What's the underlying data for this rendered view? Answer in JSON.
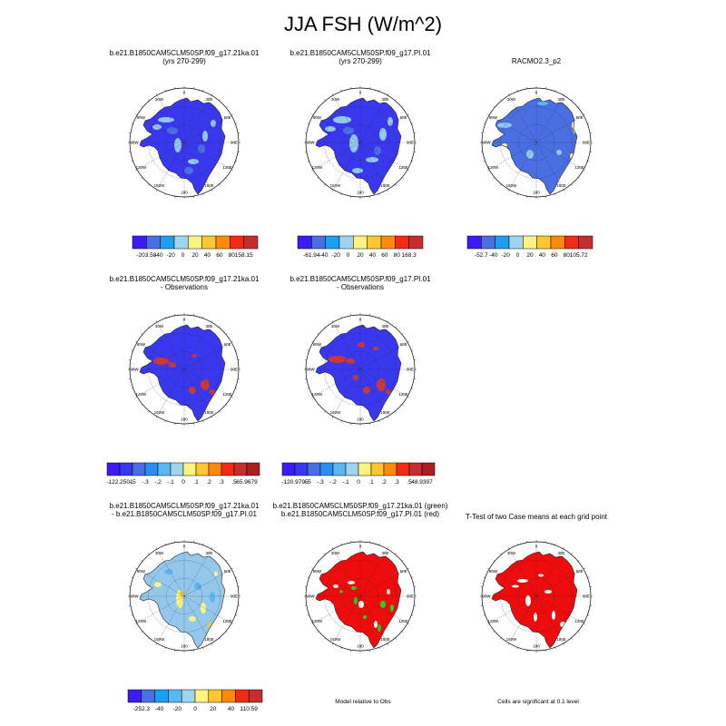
{
  "title": "JJA FSH (W/m^2)",
  "colors": {
    "land_blue": "#3a38ee",
    "light_blue": "#93c8ec",
    "mid_blue": "#4a6fe3",
    "ocean": "#ffffff",
    "sig_red": "#ef0c0c",
    "sig_green": "#1fd61f",
    "obs_red": "#c83a3a"
  },
  "lon_labels": [
    "0",
    "30E",
    "60E",
    "90E",
    "120E",
    "150E",
    "180",
    "150W",
    "120W",
    "90W",
    "60W",
    "30W"
  ],
  "panels": [
    {
      "id": "p1",
      "title": [
        "b.e21.B1850CAM5CLM50SP.f09_g17.21ka.01",
        "(yrs 270-299)"
      ],
      "map_style": "model-a"
    },
    {
      "id": "p2",
      "title": [
        "b.e21.B1850CAM5CLM50SP.f09_g17.PI.01",
        "(yrs 270-299)"
      ],
      "map_style": "model-b"
    },
    {
      "id": "p3",
      "title": [
        "RACMO2.3_p2"
      ],
      "map_style": "obs"
    },
    {
      "id": "p4",
      "title": [
        "b.e21.B1850CAM5CLM50SP.f09_g17.21ka.01",
        "- Observations"
      ],
      "map_style": "diff-a"
    },
    {
      "id": "p5",
      "title": [
        "b.e21.B1850CAM5CLM50SP.f09_g17.PI.01",
        "- Observations"
      ],
      "map_style": "diff-b"
    },
    {
      "id": "p6",
      "title": [
        "b.e21.B1850CAM5CLM50SP.f09_g17.21ka.01",
        "- b.e21.B1850CAM5CLM50SP.f09_g17.PI.01"
      ],
      "map_style": "case-diff"
    },
    {
      "id": "p7",
      "title": [
        "b.e21.B1850CAM5CLM50SP.f09_g17.21ka.01 (green)",
        "b.e21.B1850CAM5CLM50SP.f09_g17.PI.01 (red)"
      ],
      "map_style": "relative"
    },
    {
      "id": "p8",
      "title": [
        "T-Test of two Case means at each grid point"
      ],
      "map_style": "ttest"
    }
  ],
  "colorbars": [
    {
      "id": "cb1",
      "labels": [
        "-203.58",
        "-40",
        "-20",
        "0",
        "20",
        "40",
        "60",
        "80",
        "158.15"
      ],
      "colors": [
        "#3b1cf2",
        "#4a6fe3",
        "#1a9ff2",
        "#9ed4ee",
        "#fdf383",
        "#fdc632",
        "#fd8a0a",
        "#f22b16",
        "#c42e2e"
      ]
    },
    {
      "id": "cb2",
      "labels": [
        "-61.94",
        "-40",
        "-20",
        "0",
        "20",
        "40",
        "60",
        "80",
        "168.3"
      ],
      "colors": [
        "#3b1cf2",
        "#4a6fe3",
        "#1a9ff2",
        "#9ed4ee",
        "#fdf383",
        "#fdc632",
        "#fd8a0a",
        "#f22b16",
        "#c42e2e"
      ]
    },
    {
      "id": "cb3",
      "labels": [
        "-52.7",
        "-40",
        "-20",
        "0",
        "20",
        "40",
        "60",
        "80",
        "105.72"
      ],
      "colors": [
        "#3b1cf2",
        "#4a6fe3",
        "#1a9ff2",
        "#9ed4ee",
        "#fdf383",
        "#fdc632",
        "#fd8a0a",
        "#f22b16",
        "#c42e2e"
      ]
    },
    {
      "id": "cb4",
      "labels": [
        "-122.2501",
        "-.5",
        "-.3",
        "-.2",
        "-.1",
        "0",
        ".1",
        ".2",
        ".3",
        ".5",
        "65.9679"
      ],
      "colors": [
        "#3b1cf2",
        "#3a38ee",
        "#4a6fe3",
        "#2a8df0",
        "#5ab8f0",
        "#9ed4ee",
        "#fdf383",
        "#fdc632",
        "#fd8a0a",
        "#f22b16",
        "#c42e2e",
        "#a81f1f"
      ]
    },
    {
      "id": "cb5",
      "labels": [
        "-120.9795",
        "-.5",
        "-.3",
        "-.2",
        "-.1",
        "0",
        ".1",
        ".2",
        ".3",
        ".5",
        "48.9397"
      ],
      "colors": [
        "#3b1cf2",
        "#3a38ee",
        "#4a6fe3",
        "#2a8df0",
        "#5ab8f0",
        "#9ed4ee",
        "#fdf383",
        "#fdc632",
        "#fd8a0a",
        "#f22b16",
        "#c42e2e",
        "#a81f1f"
      ]
    },
    {
      "id": "cb6",
      "labels": [
        "-252.3",
        "-40",
        "-20",
        "0",
        "20",
        "40",
        "110.59"
      ],
      "colors": [
        "#3b1cf2",
        "#4a6fe3",
        "#1a9ff2",
        "#5ab8f0",
        "#9ed4ee",
        "#fdf383",
        "#fdc632",
        "#fd8a0a",
        "#f22b16",
        "#c42e2e"
      ]
    }
  ],
  "notes": {
    "relative": "Model relative to Obs",
    "significance": "Cells are significant at 0.1 level"
  },
  "chart_data": [
    {
      "type": "heatmap",
      "title": "b.e21.B1850CAM5CLM50SP.f09_g17.21ka.01 (yrs 270-299)",
      "colorbar_range": [
        -203.58,
        158.15
      ],
      "colorbar_levels": [
        -40,
        -20,
        0,
        20,
        40,
        60,
        80
      ]
    },
    {
      "type": "heatmap",
      "title": "b.e21.B1850CAM5CLM50SP.f09_g17.PI.01 (yrs 270-299)",
      "colorbar_range": [
        -61.94,
        168.3
      ],
      "colorbar_levels": [
        -40,
        -20,
        0,
        20,
        40,
        60,
        80
      ]
    },
    {
      "type": "heatmap",
      "title": "RACMO2.3_p2",
      "colorbar_range": [
        -52.7,
        105.72
      ],
      "colorbar_levels": [
        -40,
        -20,
        0,
        20,
        40,
        60,
        80
      ]
    },
    {
      "type": "heatmap",
      "title": "b.e21.B1850CAM5CLM50SP.f09_g17.21ka.01 - Observations",
      "colorbar_range": [
        -122.2501,
        65.9679
      ],
      "colorbar_levels": [
        -0.5,
        -0.3,
        -0.2,
        -0.1,
        0,
        0.1,
        0.2,
        0.3,
        0.5
      ]
    },
    {
      "type": "heatmap",
      "title": "b.e21.B1850CAM5CLM50SP.f09_g17.PI.01 - Observations",
      "colorbar_range": [
        -120.9795,
        48.9397
      ],
      "colorbar_levels": [
        -0.5,
        -0.3,
        -0.2,
        -0.1,
        0,
        0.1,
        0.2,
        0.3,
        0.5
      ]
    },
    {
      "type": "heatmap",
      "title": "b.e21.B1850CAM5CLM50SP.f09_g17.21ka.01 - b.e21.B1850CAM5CLM50SP.f09_g17.PI.01",
      "colorbar_range": [
        -252.3,
        110.59
      ],
      "colorbar_levels": [
        -40,
        -20,
        0,
        20,
        40
      ]
    },
    {
      "type": "heatmap",
      "title": "b.e21.B1850CAM5CLM50SP.f09_g17.21ka.01 (green) b.e21.B1850CAM5CLM50SP.f09_g17.PI.01 (red)",
      "note": "Model relative to Obs"
    },
    {
      "type": "heatmap",
      "title": "T-Test of two Case means at each grid point",
      "note": "Cells are significant at 0.1 level"
    }
  ]
}
